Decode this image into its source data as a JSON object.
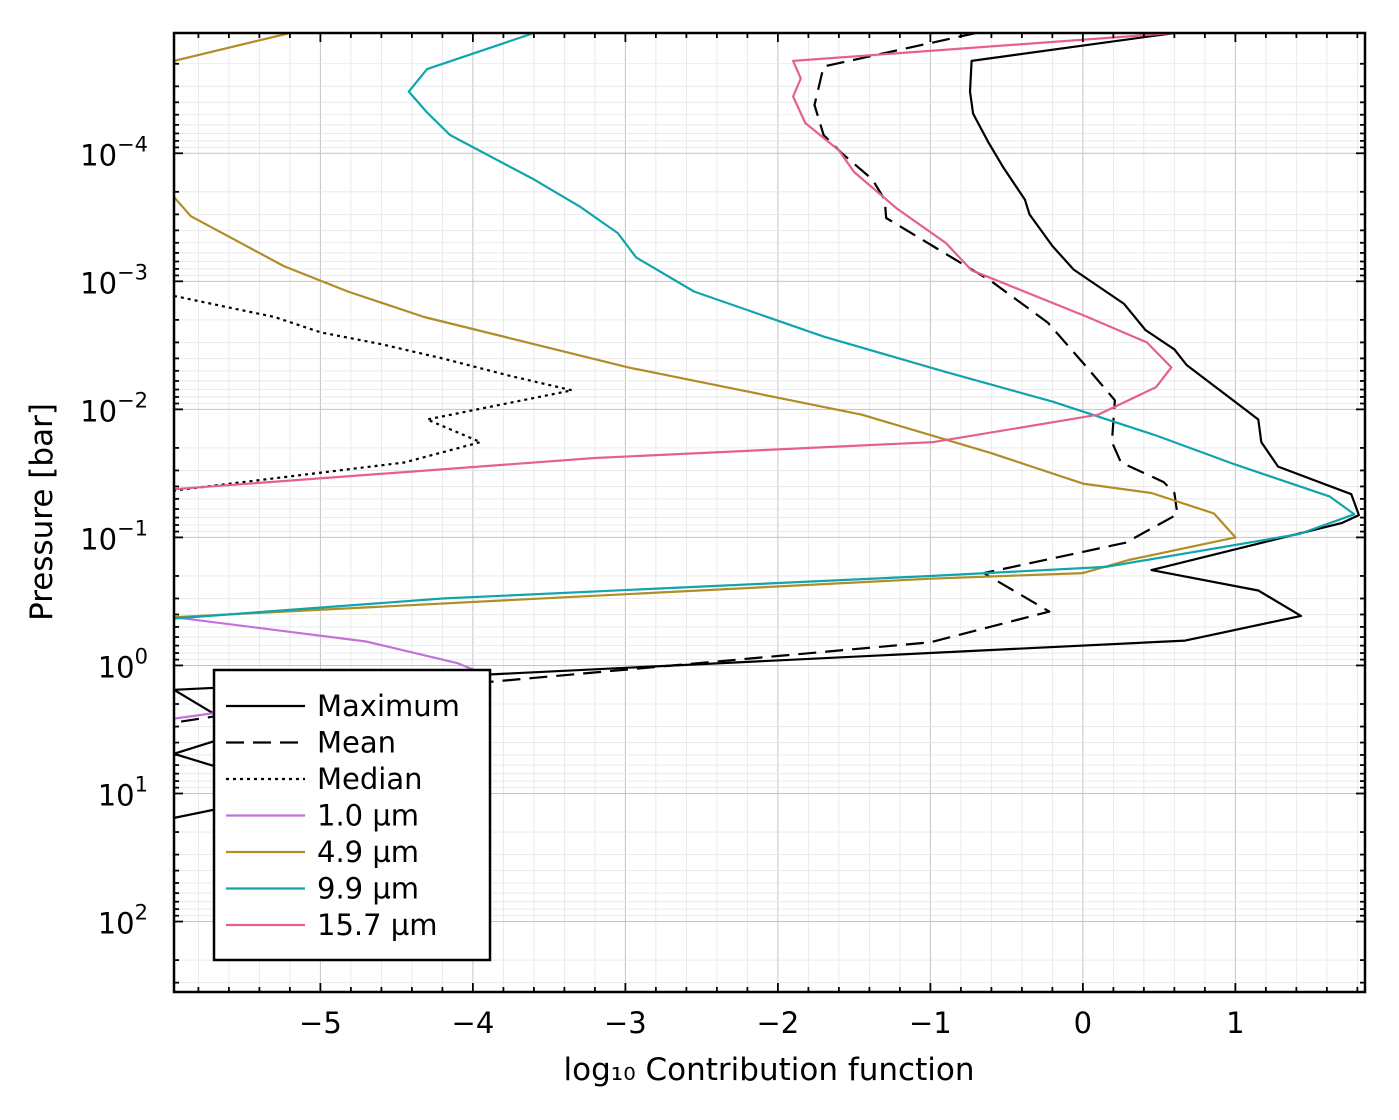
{
  "chart_data": {
    "type": "line",
    "xlabel": "log₁₀ Contribution function",
    "ylabel": "Pressure [bar]",
    "xlim": [
      -5.96,
      1.85
    ],
    "ylim": [
      1.15e-05,
      355
    ],
    "y_scale": "log",
    "y_inverted": true,
    "grid": true,
    "x_ticks": [
      -5,
      -4,
      -3,
      -2,
      -1,
      0,
      1
    ],
    "x_tick_labels": [
      "−5",
      "−4",
      "−3",
      "−2",
      "−1",
      "0",
      "1"
    ],
    "y_ticks": [
      {
        "value": 0.0001,
        "base": "10",
        "exp": "−4"
      },
      {
        "value": 0.001,
        "base": "10",
        "exp": "−3"
      },
      {
        "value": 0.01,
        "base": "10",
        "exp": "−2"
      },
      {
        "value": 0.1,
        "base": "10",
        "exp": "−1"
      },
      {
        "value": 1,
        "base": "10",
        "exp": "0"
      },
      {
        "value": 10,
        "base": "10",
        "exp": "1"
      },
      {
        "value": 100,
        "base": "10",
        "exp": "2"
      }
    ],
    "legend_position": "bottom-left",
    "series": [
      {
        "name": "Maximum",
        "color": "#000000",
        "style": "solid",
        "points": [
          [
            0.6,
            1.15e-05
          ],
          [
            -0.73,
            1.9e-05
          ],
          [
            -0.74,
            3.3e-05
          ],
          [
            -0.72,
            4.9e-05
          ],
          [
            -0.62,
            8.2e-05
          ],
          [
            -0.52,
            0.00013
          ],
          [
            -0.38,
            0.00023
          ],
          [
            -0.35,
            0.0003
          ],
          [
            -0.2,
            0.00053
          ],
          [
            -0.06,
            0.00081
          ],
          [
            0.27,
            0.0015
          ],
          [
            0.41,
            0.0024
          ],
          [
            0.6,
            0.0034
          ],
          [
            0.68,
            0.0045
          ],
          [
            0.95,
            0.0079
          ],
          [
            1.15,
            0.012
          ],
          [
            1.17,
            0.018
          ],
          [
            1.28,
            0.028
          ],
          [
            1.76,
            0.046
          ],
          [
            1.81,
            0.067
          ],
          [
            1.7,
            0.077
          ],
          [
            0.45,
            0.18
          ],
          [
            1.15,
            0.26
          ],
          [
            1.43,
            0.41
          ],
          [
            0.67,
            0.64
          ],
          [
            -5.96,
            1.55
          ],
          [
            -5.5,
            3.3
          ],
          [
            -5.96,
            4.9
          ],
          [
            -5.5,
            7.2
          ],
          [
            -5.5,
            12
          ],
          [
            -5.96,
            15.5
          ]
        ]
      },
      {
        "name": "Mean",
        "color": "#000000",
        "style": "dashed",
        "points": [
          [
            -0.7,
            1.15e-05
          ],
          [
            -1.7,
            2.1e-05
          ],
          [
            -1.76,
            4.2e-05
          ],
          [
            -1.7,
            7.2e-05
          ],
          [
            -1.58,
            0.0001
          ],
          [
            -1.38,
            0.00016
          ],
          [
            -1.3,
            0.00023
          ],
          [
            -1.29,
            0.00032
          ],
          [
            -0.6,
            0.001
          ],
          [
            -0.23,
            0.0021
          ],
          [
            0.02,
            0.0046
          ],
          [
            0.21,
            0.0085
          ],
          [
            0.19,
            0.018
          ],
          [
            0.25,
            0.026
          ],
          [
            0.53,
            0.037
          ],
          [
            0.6,
            0.045
          ],
          [
            0.62,
            0.066
          ],
          [
            0.28,
            0.11
          ],
          [
            -0.65,
            0.19
          ],
          [
            -0.22,
            0.38
          ],
          [
            -1.0,
            0.66
          ],
          [
            -4.0,
            1.38
          ],
          [
            -5.6,
            2.4
          ],
          [
            -5.96,
            2.8
          ]
        ]
      },
      {
        "name": "Median",
        "color": "#000000",
        "style": "dotted",
        "points": [
          [
            -5.96,
            0.0013
          ],
          [
            -5.6,
            0.0016
          ],
          [
            -5.3,
            0.0019
          ],
          [
            -5.0,
            0.0025
          ],
          [
            -4.6,
            0.0031
          ],
          [
            -4.2,
            0.004
          ],
          [
            -3.75,
            0.0055
          ],
          [
            -3.35,
            0.0071
          ],
          [
            -4.3,
            0.012
          ],
          [
            -3.95,
            0.018
          ],
          [
            -4.45,
            0.026
          ],
          [
            -5.96,
            0.043
          ]
        ]
      },
      {
        "name": "1.0 µm",
        "color": "#c471dd",
        "style": "solid",
        "points": [
          [
            -5.96,
            0.42
          ],
          [
            -4.7,
            0.65
          ],
          [
            -4.1,
            0.96
          ],
          [
            -3.9,
            1.2
          ],
          [
            -4.4,
            1.45
          ],
          [
            -5.96,
            2.6
          ]
        ]
      },
      {
        "name": "4.9 µm",
        "color": "#b08d27",
        "style": "solid",
        "points": [
          [
            -5.2,
            1.15e-05
          ],
          [
            -5.96,
            1.9e-05
          ],
          [
            -5.96,
            0.00022
          ],
          [
            -5.85,
            0.00031
          ],
          [
            -5.24,
            0.00076
          ],
          [
            -4.82,
            0.0012
          ],
          [
            -4.32,
            0.0019
          ],
          [
            -2.98,
            0.0047
          ],
          [
            -1.45,
            0.011
          ],
          [
            -0.6,
            0.022
          ],
          [
            0.0,
            0.038
          ],
          [
            0.45,
            0.045
          ],
          [
            0.86,
            0.065
          ],
          [
            1.0,
            0.1
          ],
          [
            0.3,
            0.15
          ],
          [
            0.0,
            0.19
          ],
          [
            -1.0,
            0.21
          ],
          [
            -5.96,
            0.42
          ]
        ]
      },
      {
        "name": "9.9 µm",
        "color": "#10a4ac",
        "style": "solid",
        "points": [
          [
            -3.6,
            1.15e-05
          ],
          [
            -4.3,
            2.2e-05
          ],
          [
            -4.42,
            3.3e-05
          ],
          [
            -4.3,
            4.8e-05
          ],
          [
            -4.15,
            7.2e-05
          ],
          [
            -3.6,
            0.00016
          ],
          [
            -3.3,
            0.00026
          ],
          [
            -3.05,
            0.00042
          ],
          [
            -2.93,
            0.00065
          ],
          [
            -2.55,
            0.0012
          ],
          [
            -1.7,
            0.0027
          ],
          [
            -0.9,
            0.0051
          ],
          [
            -0.2,
            0.0087
          ],
          [
            0.48,
            0.016
          ],
          [
            1.0,
            0.027
          ],
          [
            1.62,
            0.048
          ],
          [
            1.78,
            0.066
          ],
          [
            1.42,
            0.094
          ],
          [
            0.15,
            0.17
          ],
          [
            -1.0,
            0.2
          ],
          [
            -4.2,
            0.3
          ],
          [
            -5.96,
            0.43
          ]
        ]
      },
      {
        "name": "15.7 µm",
        "color": "#e5608f",
        "style": "solid",
        "points": [
          [
            0.6,
            1.15e-05
          ],
          [
            -1.9,
            1.9e-05
          ],
          [
            -1.85,
            2.6e-05
          ],
          [
            -1.9,
            3.6e-05
          ],
          [
            -1.82,
            5.8e-05
          ],
          [
            -1.6,
            9.5e-05
          ],
          [
            -1.5,
            0.00014
          ],
          [
            -1.22,
            0.00027
          ],
          [
            -0.9,
            0.0005
          ],
          [
            -0.73,
            0.00082
          ],
          [
            0.03,
            0.0019
          ],
          [
            0.42,
            0.003
          ],
          [
            0.58,
            0.0047
          ],
          [
            0.48,
            0.0067
          ],
          [
            0.1,
            0.011
          ],
          [
            -0.98,
            0.018
          ],
          [
            -3.2,
            0.024
          ],
          [
            -5.96,
            0.042
          ]
        ]
      }
    ]
  }
}
